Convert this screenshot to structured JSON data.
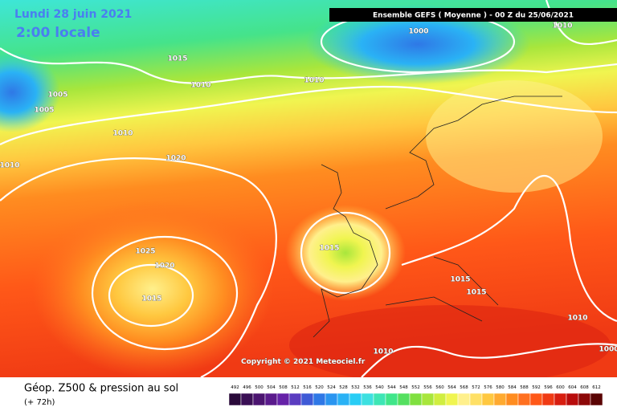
{
  "header": {
    "date": "Lundi 28 juin 2021",
    "time": "2:00 locale",
    "run": "Ensemble GEFS  ( Moyenne )  - 00 Z du 25/06/2021"
  },
  "copyright": "Copyright © 2021 Meteociel.fr",
  "footer": {
    "title": "Géop. Z500 & pression au sol",
    "lead": "(+ 72h)"
  },
  "isobar_labels": [
    1000,
    1010,
    1015,
    1010,
    1010,
    1005,
    1005,
    1010,
    1010,
    1020,
    1015,
    1025,
    1020,
    1015,
    1015,
    1015,
    1010,
    1010,
    1000
  ],
  "legend": {
    "levels": [
      492,
      496,
      500,
      504,
      508,
      512,
      516,
      520,
      524,
      528,
      532,
      536,
      540,
      544,
      548,
      552,
      556,
      560,
      564,
      568,
      572,
      576,
      580,
      584,
      588,
      592,
      596,
      600,
      604,
      608,
      612
    ],
    "colors": [
      "#2a0a3a",
      "#3a0f55",
      "#4b1470",
      "#5a1a8c",
      "#6622a8",
      "#5a3cc0",
      "#3f5ad6",
      "#2f78e6",
      "#2a95f0",
      "#2ab2f5",
      "#29cdf5",
      "#3de0e0",
      "#3ee6b5",
      "#40e68a",
      "#55e060",
      "#80e040",
      "#a8e63c",
      "#d0ee40",
      "#f0f550",
      "#fff08c",
      "#ffe066",
      "#ffc840",
      "#ffaa30",
      "#ff8c20",
      "#ff7020",
      "#ff5818",
      "#f03a14",
      "#d81e10",
      "#b80c0c",
      "#8c0808",
      "#5a0404"
    ]
  }
}
